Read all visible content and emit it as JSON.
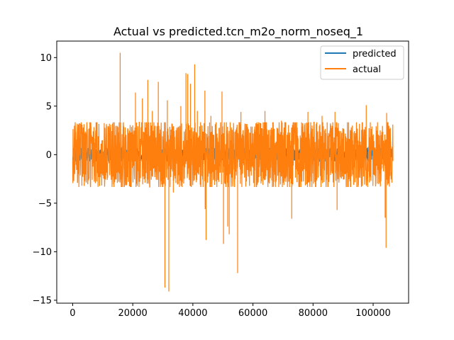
{
  "chart_data": {
    "type": "line",
    "title": "Actual vs predicted.tcn_m2o_norm_noseq_1",
    "xlabel": "",
    "ylabel": "",
    "xlim": [
      -5300,
      111800
    ],
    "ylim": [
      -15.3,
      11.7
    ],
    "grid": false,
    "legend_position": "top-right",
    "x_ticks": [
      0,
      20000,
      40000,
      60000,
      80000,
      100000
    ],
    "x_tick_labels": [
      "0",
      "20000",
      "40000",
      "60000",
      "80000",
      "100000"
    ],
    "y_ticks": [
      -15,
      -10,
      -5,
      0,
      5,
      10
    ],
    "y_tick_labels": [
      "−15",
      "−10",
      "−5",
      "0",
      "5",
      "10"
    ],
    "series": [
      {
        "name": "predicted",
        "color": "#1f77b4",
        "x_range": [
          0,
          106600
        ],
        "band_low": -0.6,
        "band_high": 0.6
      },
      {
        "name": "actual",
        "color": "#ff7f0e",
        "x_range": [
          0,
          106600
        ],
        "band_low": -2.9,
        "band_high": 2.9,
        "spikes": [
          {
            "x": 15800,
            "y": 10.5
          },
          {
            "x": 20900,
            "y": 6.4
          },
          {
            "x": 23200,
            "y": 5.8
          },
          {
            "x": 25000,
            "y": 7.7
          },
          {
            "x": 26500,
            "y": 4.5
          },
          {
            "x": 28500,
            "y": 7.5
          },
          {
            "x": 30700,
            "y": -13.7
          },
          {
            "x": 32000,
            "y": -14.1
          },
          {
            "x": 31500,
            "y": 5.6
          },
          {
            "x": 33500,
            "y": -3.9
          },
          {
            "x": 36000,
            "y": 5.0
          },
          {
            "x": 37700,
            "y": 8.4
          },
          {
            "x": 38300,
            "y": 8.3
          },
          {
            "x": 39200,
            "y": 7.3
          },
          {
            "x": 40600,
            "y": 9.3
          },
          {
            "x": 41500,
            "y": 4.5
          },
          {
            "x": 44000,
            "y": 6.6
          },
          {
            "x": 44400,
            "y": -8.8
          },
          {
            "x": 44100,
            "y": -5.6
          },
          {
            "x": 46000,
            "y": 4.0
          },
          {
            "x": 49700,
            "y": 6.5
          },
          {
            "x": 50200,
            "y": -9.2
          },
          {
            "x": 51600,
            "y": -7.4
          },
          {
            "x": 52100,
            "y": -8.2
          },
          {
            "x": 54900,
            "y": -12.2
          },
          {
            "x": 56000,
            "y": 4.4
          },
          {
            "x": 64000,
            "y": 4.5
          },
          {
            "x": 69500,
            "y": 3.5
          },
          {
            "x": 72900,
            "y": -6.6
          },
          {
            "x": 78300,
            "y": 4.4
          },
          {
            "x": 83000,
            "y": 4.0
          },
          {
            "x": 88000,
            "y": -5.7
          },
          {
            "x": 87300,
            "y": 4.4
          },
          {
            "x": 97700,
            "y": 5.1
          },
          {
            "x": 104300,
            "y": -9.6
          },
          {
            "x": 104000,
            "y": -6.5
          },
          {
            "x": 104500,
            "y": 4.3
          }
        ]
      }
    ]
  }
}
